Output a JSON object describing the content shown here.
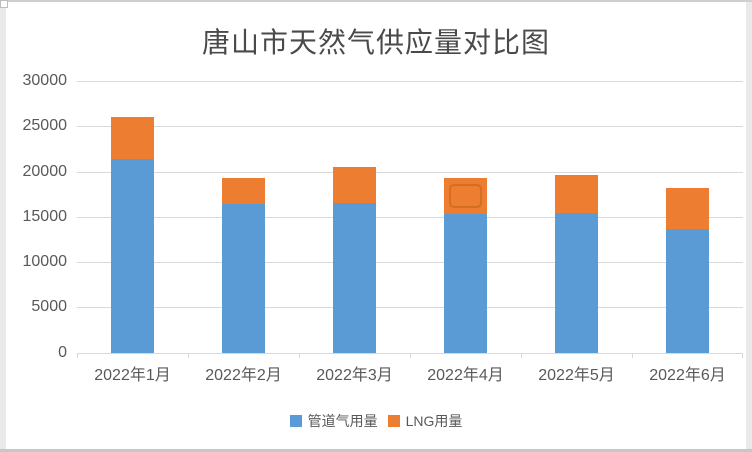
{
  "window": {
    "background": "#ffffff",
    "edge_band_color": "#e9e9e9",
    "frame_line_color": "#c7c7c7"
  },
  "chart_data": {
    "type": "bar",
    "stacked": true,
    "title": "唐山市天然气供应量对比图",
    "categories": [
      "2022年1月",
      "2022年2月",
      "2022年3月",
      "2022年4月",
      "2022年5月",
      "2022年6月"
    ],
    "series": [
      {
        "name": "管道气用量",
        "color": "#5B9BD5",
        "values": [
          21400,
          16400,
          16500,
          15300,
          15400,
          13650
        ]
      },
      {
        "name": "LNG用量",
        "color": "#ED7D31",
        "values": [
          4650,
          2850,
          3950,
          3950,
          4250,
          4500
        ]
      }
    ],
    "totals": [
      26050,
      19250,
      20450,
      19250,
      19650,
      18150
    ],
    "xlabel": "",
    "ylabel": "",
    "ylim": [
      0,
      30000
    ],
    "ytick_interval": 5000,
    "yticks": [
      0,
      5000,
      10000,
      15000,
      20000,
      25000,
      30000
    ],
    "grid": true,
    "gridline_color": "#d9d9d9",
    "axis_line_color": "#d9d9d9",
    "label_color": "#595959",
    "title_color": "#4a4a4a",
    "legend_position": "bottom",
    "selected_point": {
      "category_index": 3,
      "series_index": 1
    }
  }
}
